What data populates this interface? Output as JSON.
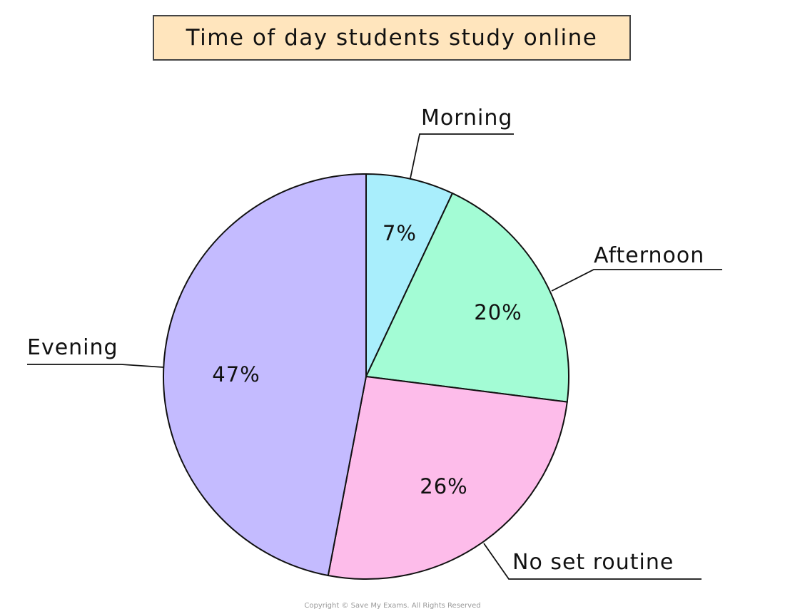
{
  "chart_data": {
    "type": "pie",
    "title": "Time of day students study online",
    "start": "top",
    "direction": "clockwise",
    "slices": [
      {
        "label": "Morning",
        "value": 7,
        "value_label": "7%",
        "color": "#a9eefc"
      },
      {
        "label": "Afternoon",
        "value": 20,
        "value_label": "20%",
        "color": "#a3fcd5"
      },
      {
        "label": "No set routine",
        "value": 26,
        "value_label": "26%",
        "color": "#fdbcea"
      },
      {
        "label": "Evening",
        "value": 47,
        "value_label": "47%",
        "color": "#c4bbff"
      }
    ]
  },
  "copyright": "Copyright © Save My Exams. All Rights Reserved"
}
